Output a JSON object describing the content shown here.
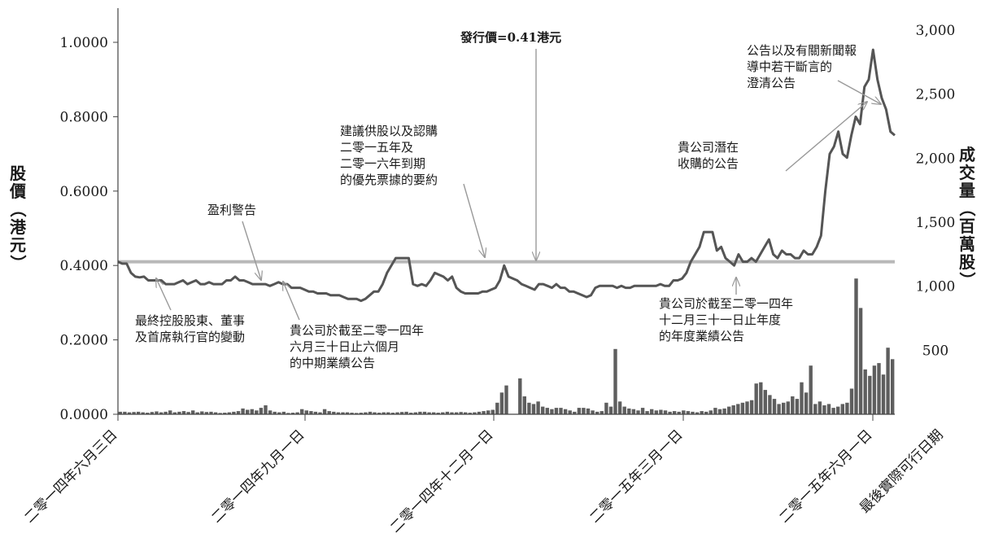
{
  "chart_data": {
    "type": "line",
    "title": "",
    "y_left_label": "股價（港元）",
    "y_right_label": "成交量（百萬股）",
    "y_left_range": [
      0,
      1.0
    ],
    "y_left_ticks": [
      "0.0000",
      "0.2000",
      "0.4000",
      "0.6000",
      "0.8000",
      "1.0000"
    ],
    "y_right_range": [
      0,
      3000
    ],
    "y_right_ticks": [
      "500",
      "1,000",
      "1,500",
      "2,000",
      "2,500",
      "3,000"
    ],
    "x_ticks": [
      "二零一四年六月三日",
      "二零一四年九月一日",
      "二零一四年十二月一日",
      "二零一五年三月一日",
      "二零一五年六月一日",
      "最後實際可行日期"
    ],
    "offer_price": 0.41,
    "offer_label": "發行價=0.41港元",
    "series": [
      {
        "name": "股價",
        "type": "line",
        "values": [
          0.41,
          0.405,
          0.405,
          0.38,
          0.37,
          0.368,
          0.37,
          0.36,
          0.36,
          0.36,
          0.36,
          0.35,
          0.35,
          0.35,
          0.355,
          0.36,
          0.35,
          0.355,
          0.36,
          0.35,
          0.35,
          0.355,
          0.35,
          0.35,
          0.35,
          0.36,
          0.36,
          0.37,
          0.36,
          0.36,
          0.355,
          0.35,
          0.35,
          0.35,
          0.35,
          0.345,
          0.35,
          0.355,
          0.35,
          0.35,
          0.34,
          0.34,
          0.34,
          0.335,
          0.33,
          0.33,
          0.325,
          0.325,
          0.325,
          0.32,
          0.32,
          0.32,
          0.315,
          0.31,
          0.31,
          0.31,
          0.305,
          0.31,
          0.32,
          0.33,
          0.33,
          0.35,
          0.38,
          0.4,
          0.42,
          0.42,
          0.42,
          0.42,
          0.35,
          0.345,
          0.35,
          0.345,
          0.36,
          0.38,
          0.375,
          0.37,
          0.36,
          0.37,
          0.34,
          0.33,
          0.325,
          0.325,
          0.325,
          0.325,
          0.33,
          0.33,
          0.335,
          0.34,
          0.36,
          0.4,
          0.37,
          0.365,
          0.36,
          0.35,
          0.345,
          0.34,
          0.335,
          0.35,
          0.35,
          0.345,
          0.34,
          0.35,
          0.34,
          0.34,
          0.33,
          0.33,
          0.325,
          0.32,
          0.315,
          0.32,
          0.34,
          0.345,
          0.345,
          0.345,
          0.345,
          0.34,
          0.345,
          0.34,
          0.34,
          0.345,
          0.345,
          0.345,
          0.345,
          0.345,
          0.345,
          0.35,
          0.345,
          0.345,
          0.36,
          0.36,
          0.365,
          0.38,
          0.41,
          0.43,
          0.45,
          0.49,
          0.49,
          0.49,
          0.44,
          0.45,
          0.42,
          0.41,
          0.4,
          0.43,
          0.41,
          0.41,
          0.42,
          0.41,
          0.43,
          0.45,
          0.47,
          0.43,
          0.42,
          0.44,
          0.43,
          0.43,
          0.42,
          0.42,
          0.44,
          0.43,
          0.43,
          0.45,
          0.48,
          0.6,
          0.7,
          0.72,
          0.76,
          0.7,
          0.69,
          0.75,
          0.8,
          0.78,
          0.88,
          0.9,
          0.98,
          0.9,
          0.85,
          0.82,
          0.76,
          0.75
        ]
      },
      {
        "name": "成交量",
        "type": "bar",
        "values": [
          20,
          20,
          15,
          18,
          20,
          15,
          12,
          18,
          22,
          15,
          20,
          30,
          15,
          20,
          25,
          18,
          30,
          15,
          22,
          18,
          20,
          15,
          10,
          12,
          15,
          20,
          25,
          45,
          35,
          40,
          30,
          50,
          70,
          30,
          20,
          15,
          20,
          10,
          12,
          15,
          40,
          30,
          25,
          20,
          15,
          40,
          25,
          20,
          15,
          15,
          15,
          12,
          10,
          12,
          15,
          20,
          15,
          12,
          15,
          15,
          12,
          15,
          18,
          20,
          12,
          15,
          20,
          20,
          15,
          15,
          12,
          15,
          20,
          15,
          15,
          18,
          15,
          12,
          15,
          20,
          25,
          30,
          35,
          90,
          170,
          225,
          0,
          0,
          280,
          140,
          90,
          80,
          100,
          60,
          50,
          40,
          50,
          50,
          40,
          30,
          20,
          50,
          50,
          45,
          30,
          20,
          25,
          90,
          60,
          510,
          100,
          60,
          45,
          40,
          30,
          50,
          25,
          40,
          30,
          35,
          30,
          20,
          25,
          20,
          30,
          25,
          20,
          15,
          25,
          20,
          30,
          50,
          40,
          45,
          60,
          70,
          80,
          90,
          100,
          110,
          240,
          250,
          190,
          150,
          120,
          80,
          90,
          100,
          140,
          120,
          250,
          170,
          380,
          80,
          100,
          70,
          80,
          50,
          60,
          80,
          90,
          200,
          1060,
          830,
          350,
          300,
          380,
          400,
          310,
          520,
          430
        ]
      }
    ],
    "annotations": [
      {
        "id": "ann-controlling",
        "lines": [
          "最終控股股東、董事",
          "及首席執行官的變動"
        ]
      },
      {
        "id": "ann-profit-warning",
        "lines": [
          "盈利警告"
        ]
      },
      {
        "id": "ann-interim",
        "lines": [
          "貴公司於截至二零一四年",
          "六月三十日止六個月",
          "的中期業績公告"
        ]
      },
      {
        "id": "ann-rights",
        "lines": [
          "建議供股以及認購",
          "二零一五年及",
          "二零一六年到期",
          "的優先票據的要約"
        ]
      },
      {
        "id": "ann-annual",
        "lines": [
          "貴公司於截至二零一四年",
          "十二月三十一日止年度",
          "的年度業績公告"
        ]
      },
      {
        "id": "ann-acquisition",
        "lines": [
          "貴公司潛在",
          "收購的公告"
        ]
      },
      {
        "id": "ann-clarification",
        "lines": [
          "公告以及有關新聞報",
          "導中若干斷言的",
          "澄清公告"
        ]
      }
    ],
    "colors": {
      "price_line": "#555555",
      "volume_bar": "#5e5e5e",
      "offer_line": "#b8b8b8",
      "axis": "#444444",
      "arrow": "#999999"
    }
  }
}
